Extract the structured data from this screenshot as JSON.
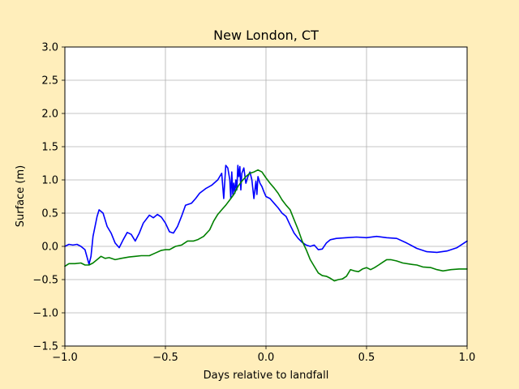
{
  "chart_data": {
    "type": "line",
    "title": "New London, CT",
    "xlabel": "Days relative to landfall",
    "ylabel": "Surface (m)",
    "xlim": [
      -1.0,
      1.0
    ],
    "ylim": [
      -1.5,
      3.0
    ],
    "xticks": [
      -1.0,
      -0.5,
      0.0,
      0.5,
      1.0
    ],
    "xtick_labels": [
      "−1.0",
      "−0.5",
      "0.0",
      "0.5",
      "1.0"
    ],
    "yticks": [
      -1.5,
      -1.0,
      -0.5,
      0.0,
      0.5,
      1.0,
      1.5,
      2.0,
      2.5,
      3.0
    ],
    "ytick_labels": [
      "−1.5",
      "−1.0",
      "−0.5",
      "0.0",
      "0.5",
      "1.0",
      "1.5",
      "2.0",
      "2.5",
      "3.0"
    ],
    "grid": true,
    "background": "#ffeebb",
    "series": [
      {
        "color": "#0000ff",
        "points": [
          [
            -1.0,
            0.0
          ],
          [
            -0.98,
            0.03
          ],
          [
            -0.96,
            0.02
          ],
          [
            -0.94,
            0.03
          ],
          [
            -0.92,
            0.0
          ],
          [
            -0.9,
            -0.05
          ],
          [
            -0.88,
            -0.27
          ],
          [
            -0.87,
            -0.15
          ],
          [
            -0.86,
            0.15
          ],
          [
            -0.84,
            0.45
          ],
          [
            -0.83,
            0.55
          ],
          [
            -0.81,
            0.5
          ],
          [
            -0.79,
            0.3
          ],
          [
            -0.77,
            0.2
          ],
          [
            -0.75,
            0.05
          ],
          [
            -0.73,
            -0.02
          ],
          [
            -0.71,
            0.1
          ],
          [
            -0.69,
            0.21
          ],
          [
            -0.67,
            0.18
          ],
          [
            -0.65,
            0.08
          ],
          [
            -0.63,
            0.2
          ],
          [
            -0.61,
            0.35
          ],
          [
            -0.58,
            0.47
          ],
          [
            -0.56,
            0.43
          ],
          [
            -0.54,
            0.48
          ],
          [
            -0.52,
            0.44
          ],
          [
            -0.5,
            0.35
          ],
          [
            -0.48,
            0.22
          ],
          [
            -0.46,
            0.2
          ],
          [
            -0.44,
            0.3
          ],
          [
            -0.42,
            0.45
          ],
          [
            -0.4,
            0.62
          ],
          [
            -0.37,
            0.65
          ],
          [
            -0.35,
            0.72
          ],
          [
            -0.33,
            0.8
          ],
          [
            -0.3,
            0.87
          ],
          [
            -0.27,
            0.92
          ],
          [
            -0.24,
            1.0
          ],
          [
            -0.22,
            1.1
          ],
          [
            -0.21,
            0.72
          ],
          [
            -0.2,
            1.22
          ],
          [
            -0.19,
            1.18
          ],
          [
            -0.18,
            1.0
          ],
          [
            -0.175,
            0.72
          ],
          [
            -0.17,
            1.12
          ],
          [
            -0.165,
            0.78
          ],
          [
            -0.16,
            0.95
          ],
          [
            -0.155,
            0.8
          ],
          [
            -0.15,
            1.0
          ],
          [
            -0.145,
            0.85
          ],
          [
            -0.14,
            1.22
          ],
          [
            -0.135,
            1.05
          ],
          [
            -0.13,
            1.2
          ],
          [
            -0.125,
            0.85
          ],
          [
            -0.12,
            1.1
          ],
          [
            -0.11,
            1.18
          ],
          [
            -0.1,
            0.95
          ],
          [
            -0.09,
            1.05
          ],
          [
            -0.08,
            1.12
          ],
          [
            -0.07,
            1.0
          ],
          [
            -0.06,
            0.72
          ],
          [
            -0.05,
            0.98
          ],
          [
            -0.045,
            0.78
          ],
          [
            -0.04,
            1.05
          ],
          [
            -0.03,
            0.95
          ],
          [
            -0.02,
            0.9
          ],
          [
            -0.01,
            0.82
          ],
          [
            0.0,
            0.75
          ],
          [
            0.02,
            0.72
          ],
          [
            0.04,
            0.65
          ],
          [
            0.06,
            0.58
          ],
          [
            0.08,
            0.5
          ],
          [
            0.1,
            0.45
          ],
          [
            0.12,
            0.32
          ],
          [
            0.14,
            0.2
          ],
          [
            0.16,
            0.12
          ],
          [
            0.18,
            0.06
          ],
          [
            0.2,
            0.02
          ],
          [
            0.22,
            0.0
          ],
          [
            0.24,
            0.02
          ],
          [
            0.26,
            -0.05
          ],
          [
            0.28,
            -0.04
          ],
          [
            0.3,
            0.05
          ],
          [
            0.32,
            0.1
          ],
          [
            0.35,
            0.12
          ],
          [
            0.4,
            0.13
          ],
          [
            0.45,
            0.14
          ],
          [
            0.5,
            0.13
          ],
          [
            0.55,
            0.15
          ],
          [
            0.6,
            0.13
          ],
          [
            0.65,
            0.12
          ],
          [
            0.7,
            0.05
          ],
          [
            0.75,
            -0.03
          ],
          [
            0.8,
            -0.08
          ],
          [
            0.85,
            -0.09
          ],
          [
            0.9,
            -0.07
          ],
          [
            0.95,
            -0.02
          ],
          [
            1.0,
            0.08
          ]
        ]
      },
      {
        "color": "#008000",
        "points": [
          [
            -1.0,
            -0.3
          ],
          [
            -0.98,
            -0.26
          ],
          [
            -0.95,
            -0.26
          ],
          [
            -0.92,
            -0.25
          ],
          [
            -0.9,
            -0.28
          ],
          [
            -0.88,
            -0.28
          ],
          [
            -0.86,
            -0.25
          ],
          [
            -0.84,
            -0.2
          ],
          [
            -0.82,
            -0.15
          ],
          [
            -0.8,
            -0.18
          ],
          [
            -0.78,
            -0.17
          ],
          [
            -0.75,
            -0.2
          ],
          [
            -0.72,
            -0.18
          ],
          [
            -0.68,
            -0.16
          ],
          [
            -0.65,
            -0.15
          ],
          [
            -0.62,
            -0.14
          ],
          [
            -0.58,
            -0.14
          ],
          [
            -0.55,
            -0.1
          ],
          [
            -0.52,
            -0.06
          ],
          [
            -0.5,
            -0.05
          ],
          [
            -0.48,
            -0.05
          ],
          [
            -0.45,
            0.0
          ],
          [
            -0.42,
            0.02
          ],
          [
            -0.39,
            0.08
          ],
          [
            -0.36,
            0.08
          ],
          [
            -0.34,
            0.1
          ],
          [
            -0.31,
            0.15
          ],
          [
            -0.28,
            0.25
          ],
          [
            -0.26,
            0.38
          ],
          [
            -0.24,
            0.48
          ],
          [
            -0.22,
            0.55
          ],
          [
            -0.2,
            0.62
          ],
          [
            -0.18,
            0.7
          ],
          [
            -0.16,
            0.78
          ],
          [
            -0.14,
            0.9
          ],
          [
            -0.12,
            0.98
          ],
          [
            -0.1,
            1.05
          ],
          [
            -0.08,
            1.1
          ],
          [
            -0.06,
            1.12
          ],
          [
            -0.04,
            1.15
          ],
          [
            -0.02,
            1.12
          ],
          [
            0.0,
            1.03
          ],
          [
            0.02,
            0.95
          ],
          [
            0.04,
            0.88
          ],
          [
            0.06,
            0.8
          ],
          [
            0.08,
            0.7
          ],
          [
            0.1,
            0.62
          ],
          [
            0.12,
            0.55
          ],
          [
            0.14,
            0.4
          ],
          [
            0.16,
            0.25
          ],
          [
            0.18,
            0.08
          ],
          [
            0.2,
            -0.05
          ],
          [
            0.22,
            -0.2
          ],
          [
            0.24,
            -0.3
          ],
          [
            0.26,
            -0.4
          ],
          [
            0.28,
            -0.44
          ],
          [
            0.3,
            -0.45
          ],
          [
            0.32,
            -0.48
          ],
          [
            0.34,
            -0.52
          ],
          [
            0.36,
            -0.5
          ],
          [
            0.38,
            -0.49
          ],
          [
            0.4,
            -0.45
          ],
          [
            0.42,
            -0.35
          ],
          [
            0.44,
            -0.37
          ],
          [
            0.46,
            -0.38
          ],
          [
            0.48,
            -0.34
          ],
          [
            0.5,
            -0.32
          ],
          [
            0.52,
            -0.35
          ],
          [
            0.54,
            -0.32
          ],
          [
            0.56,
            -0.28
          ],
          [
            0.58,
            -0.24
          ],
          [
            0.6,
            -0.2
          ],
          [
            0.62,
            -0.2
          ],
          [
            0.65,
            -0.22
          ],
          [
            0.68,
            -0.25
          ],
          [
            0.72,
            -0.27
          ],
          [
            0.75,
            -0.28
          ],
          [
            0.78,
            -0.31
          ],
          [
            0.82,
            -0.32
          ],
          [
            0.85,
            -0.35
          ],
          [
            0.88,
            -0.37
          ],
          [
            0.92,
            -0.35
          ],
          [
            0.96,
            -0.34
          ],
          [
            1.0,
            -0.34
          ]
        ]
      }
    ]
  }
}
